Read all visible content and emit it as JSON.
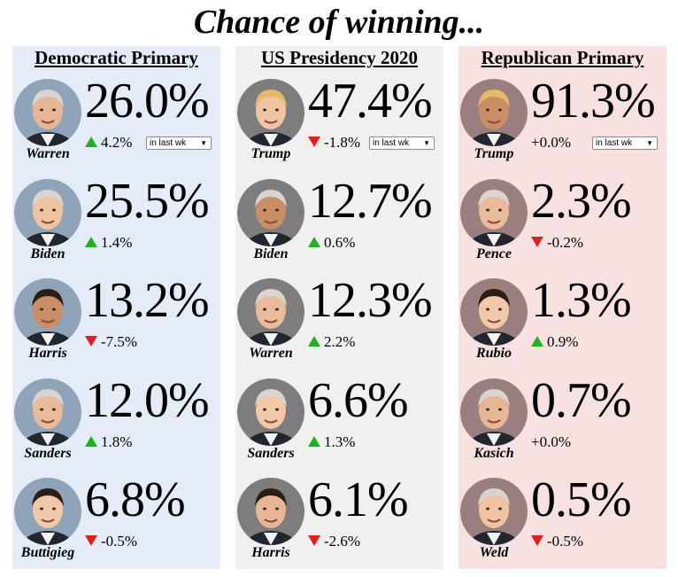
{
  "title": "Chance of winning...",
  "colors": {
    "up": "#1fb21f",
    "down": "#e0201a",
    "dem_bg": "#e3ecf7",
    "pres_bg": "#f0f0f0",
    "rep_bg": "#f7e1e1"
  },
  "columns": [
    {
      "key": "dem",
      "heading": "Democratic Primary",
      "period": "in last wk",
      "candidates": [
        {
          "name": "Warren",
          "pct": "26.0%",
          "change": "4.2%",
          "dir": "up"
        },
        {
          "name": "Biden",
          "pct": "25.5%",
          "change": "1.4%",
          "dir": "up"
        },
        {
          "name": "Harris",
          "pct": "13.2%",
          "change": "-7.5%",
          "dir": "down"
        },
        {
          "name": "Sanders",
          "pct": "12.0%",
          "change": "1.8%",
          "dir": "up"
        },
        {
          "name": "Buttigieg",
          "pct": "6.8%",
          "change": "-0.5%",
          "dir": "down"
        }
      ]
    },
    {
      "key": "pres",
      "heading": "US Presidency 2020",
      "period": "in last wk",
      "candidates": [
        {
          "name": "Trump",
          "pct": "47.4%",
          "change": "-1.8%",
          "dir": "down"
        },
        {
          "name": "Biden",
          "pct": "12.7%",
          "change": "0.6%",
          "dir": "up"
        },
        {
          "name": "Warren",
          "pct": "12.3%",
          "change": "2.2%",
          "dir": "up"
        },
        {
          "name": "Sanders",
          "pct": "6.6%",
          "change": "1.3%",
          "dir": "up"
        },
        {
          "name": "Harris",
          "pct": "6.1%",
          "change": "-2.6%",
          "dir": "down"
        }
      ]
    },
    {
      "key": "rep",
      "heading": "Republican Primary",
      "period": "in last wk",
      "candidates": [
        {
          "name": "Trump",
          "pct": "91.3%",
          "change": "+0.0%",
          "dir": "none"
        },
        {
          "name": "Pence",
          "pct": "2.3%",
          "change": "-0.2%",
          "dir": "down"
        },
        {
          "name": "Rubio",
          "pct": "1.3%",
          "change": "0.9%",
          "dir": "up"
        },
        {
          "name": "Kasich",
          "pct": "0.7%",
          "change": "+0.0%",
          "dir": "none"
        },
        {
          "name": "Weld",
          "pct": "0.5%",
          "change": "-0.5%",
          "dir": "down"
        }
      ]
    }
  ]
}
